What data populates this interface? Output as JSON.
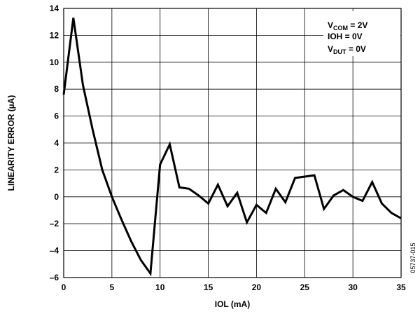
{
  "chart_data": {
    "type": "line",
    "xlabel": "IOL (mA)",
    "ylabel": "LINEARITY ERROR (µA)",
    "xlim": [
      0,
      35
    ],
    "ylim": [
      -6,
      14
    ],
    "x_ticks": [
      0,
      5,
      10,
      15,
      20,
      25,
      30,
      35
    ],
    "y_ticks": [
      14,
      12,
      10,
      8,
      6,
      4,
      2,
      0,
      -2,
      -4,
      -6
    ],
    "x_tick_labels": [
      "0",
      "5",
      "10",
      "15",
      "20",
      "25",
      "30",
      "35"
    ],
    "y_tick_labels": [
      "14",
      "12",
      "10",
      "8",
      "6",
      "4",
      "2",
      "0",
      "–2",
      "–4",
      "–6"
    ],
    "grid": true,
    "legend": {
      "lines": [
        {
          "main": "V",
          "sub": "COM",
          "rest": " = 2V"
        },
        {
          "main": "IOH = 0V",
          "sub": "",
          "rest": ""
        },
        {
          "main": "V",
          "sub": "DUT",
          "rest": " = 0V"
        }
      ]
    },
    "figure_id": "05737-015",
    "series": [
      {
        "x": [
          0,
          1,
          2,
          3,
          4,
          5,
          6,
          7,
          8,
          9,
          10,
          11,
          12,
          13,
          14,
          15,
          16,
          17,
          18,
          19,
          20,
          21,
          22,
          23,
          24,
          25,
          26,
          27,
          28,
          29,
          30,
          31,
          32,
          33,
          34,
          35
        ],
        "values": [
          7.6,
          13.3,
          8.3,
          5.0,
          2.0,
          0.0,
          -1.7,
          -3.3,
          -4.7,
          -5.7,
          2.4,
          3.9,
          0.7,
          0.6,
          0.1,
          -0.5,
          0.9,
          -0.7,
          0.3,
          -1.9,
          -0.6,
          -1.2,
          0.6,
          -0.4,
          1.4,
          1.5,
          1.6,
          -0.9,
          0.1,
          0.5,
          0.0,
          -0.3,
          1.1,
          -0.5,
          -1.2,
          -1.6
        ]
      }
    ]
  }
}
